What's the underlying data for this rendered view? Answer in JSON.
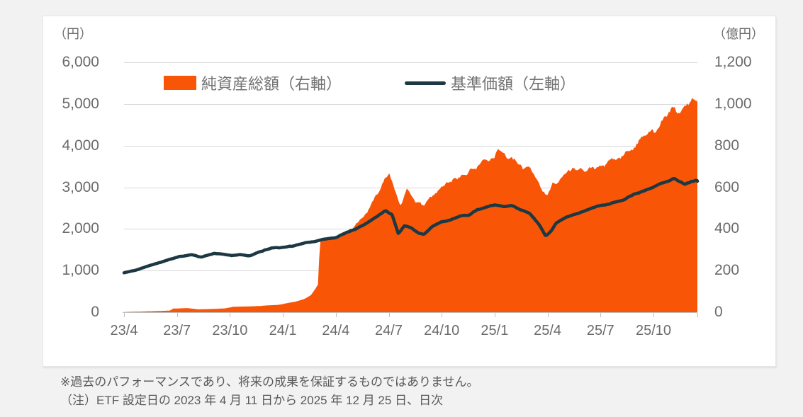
{
  "axes": {
    "left_unit": "（円）",
    "right_unit": "（億円）"
  },
  "legend": [
    {
      "label": "純資産総額（右軸）",
      "type": "area",
      "color": "#F85507"
    },
    {
      "label": "基準価額（左軸）",
      "type": "line",
      "color": "#1C3943"
    }
  ],
  "footnotes": [
    "※過去のパフォーマンスであり、将来の成果を保証するものではありません。",
    "（注）ETF 設定日の 2023 年 4 月 11 日から 2025 年 12 月 25 日、日次"
  ],
  "colors": {
    "area": "#F85507",
    "line": "#1C3943",
    "gridline": "#d9d9d9",
    "axis_line": "#bfbfbf",
    "tick_text": "#6b6b6b"
  },
  "chart_data": {
    "type": "area",
    "subtype": "area(right-axis) + line(left-axis) combo, daily time series",
    "title": "",
    "period": "2023/4/11 から 2025/12/25、日次",
    "x_ticks": [
      "23/4",
      "23/7",
      "23/10",
      "24/1",
      "24/4",
      "24/7",
      "24/10",
      "25/1",
      "25/4",
      "25/7",
      "25/10"
    ],
    "x_domain_months": [
      0,
      32.5
    ],
    "left_axis": {
      "unit": "円",
      "min": 0,
      "max": 6000,
      "tick_labels": [
        "6,000",
        "5,000",
        "4,000",
        "3,000",
        "2,000",
        "1,000",
        "0"
      ],
      "grid": true
    },
    "right_axis": {
      "unit": "億円",
      "min": 0,
      "max": 1200,
      "tick_labels": [
        "1,200",
        "1,000",
        "800",
        "600",
        "400",
        "200",
        "0"
      ],
      "grid": false
    },
    "legend_position": "top-inside",
    "series": [
      {
        "name": "純資産総額（右軸）",
        "type": "area",
        "axis": "right",
        "color": "#F85507",
        "points_note": "[months since 2023/4/11, 億円] anchor points read from chart",
        "points": [
          [
            0,
            1
          ],
          [
            1,
            3
          ],
          [
            2,
            6
          ],
          [
            2.6,
            8
          ],
          [
            2.8,
            18
          ],
          [
            3.6,
            20
          ],
          [
            4.2,
            14
          ],
          [
            4.7,
            15
          ],
          [
            5.2,
            16
          ],
          [
            5.7,
            18
          ],
          [
            6.2,
            26
          ],
          [
            7.2,
            28
          ],
          [
            7.7,
            30
          ],
          [
            8.3,
            33
          ],
          [
            8.7,
            35
          ],
          [
            9.3,
            44
          ],
          [
            9.7,
            50
          ],
          [
            10.2,
            62
          ],
          [
            10.6,
            80
          ],
          [
            10.85,
            110
          ],
          [
            11.0,
            130
          ],
          [
            11.1,
            330
          ],
          [
            11.4,
            340
          ],
          [
            12,
            345
          ],
          [
            12.5,
            370
          ],
          [
            13,
            395
          ],
          [
            13.5,
            440
          ],
          [
            14,
            500
          ],
          [
            14.5,
            565
          ],
          [
            14.8,
            635
          ],
          [
            15.05,
            667
          ],
          [
            15.35,
            600
          ],
          [
            15.7,
            532
          ],
          [
            16.05,
            585
          ],
          [
            16.4,
            560
          ],
          [
            16.9,
            515
          ],
          [
            17.4,
            545
          ],
          [
            17.9,
            580
          ],
          [
            18.4,
            612
          ],
          [
            18.9,
            640
          ],
          [
            19.4,
            660
          ],
          [
            19.9,
            692
          ],
          [
            20.4,
            722
          ],
          [
            20.9,
            755
          ],
          [
            21.15,
            805
          ],
          [
            21.5,
            790
          ],
          [
            21.8,
            762
          ],
          [
            22.2,
            733
          ],
          [
            22.6,
            682
          ],
          [
            23,
            703
          ],
          [
            23.4,
            652
          ],
          [
            23.75,
            603
          ],
          [
            24.0,
            572
          ],
          [
            24.3,
            632
          ],
          [
            24.7,
            662
          ],
          [
            25.1,
            700
          ],
          [
            25.5,
            715
          ],
          [
            25.9,
            722
          ],
          [
            26.2,
            702
          ],
          [
            26.6,
            716
          ],
          [
            27.1,
            710
          ],
          [
            27.6,
            720
          ],
          [
            28.1,
            726
          ],
          [
            28.6,
            752
          ],
          [
            29.1,
            792
          ],
          [
            29.5,
            845
          ],
          [
            29.9,
            895
          ],
          [
            30.2,
            872
          ],
          [
            30.5,
            932
          ],
          [
            30.9,
            948
          ],
          [
            31.2,
            986
          ],
          [
            31.5,
            942
          ],
          [
            31.8,
            962
          ],
          [
            32.1,
            982
          ],
          [
            32.5,
            1007
          ]
        ]
      },
      {
        "name": "基準価額（左軸）",
        "type": "line",
        "axis": "left",
        "color": "#1C3943",
        "points_note": "[months since 2023/4/11, 円] anchor points read from chart",
        "points": [
          [
            0,
            945
          ],
          [
            0.7,
            1005
          ],
          [
            1.7,
            1150
          ],
          [
            2.4,
            1250
          ],
          [
            3.1,
            1340
          ],
          [
            3.8,
            1395
          ],
          [
            4.4,
            1330
          ],
          [
            5.1,
            1415
          ],
          [
            5.6,
            1400
          ],
          [
            6.1,
            1360
          ],
          [
            6.6,
            1385
          ],
          [
            7.1,
            1355
          ],
          [
            7.7,
            1450
          ],
          [
            8.4,
            1545
          ],
          [
            9.1,
            1560
          ],
          [
            9.7,
            1590
          ],
          [
            10.4,
            1665
          ],
          [
            11.2,
            1735
          ],
          [
            12.0,
            1805
          ],
          [
            12.6,
            1930
          ],
          [
            13.1,
            2000
          ],
          [
            13.6,
            2110
          ],
          [
            14.3,
            2280
          ],
          [
            14.85,
            2430
          ],
          [
            15.2,
            2340
          ],
          [
            15.55,
            1880
          ],
          [
            15.9,
            2075
          ],
          [
            16.3,
            2025
          ],
          [
            16.7,
            1900
          ],
          [
            17.0,
            1870
          ],
          [
            17.5,
            2050
          ],
          [
            18.0,
            2160
          ],
          [
            18.5,
            2190
          ],
          [
            19.0,
            2295
          ],
          [
            19.5,
            2330
          ],
          [
            20.0,
            2475
          ],
          [
            20.5,
            2545
          ],
          [
            21.0,
            2585
          ],
          [
            21.5,
            2540
          ],
          [
            22.0,
            2560
          ],
          [
            22.5,
            2450
          ],
          [
            23.0,
            2370
          ],
          [
            23.55,
            2100
          ],
          [
            23.9,
            1845
          ],
          [
            24.2,
            1950
          ],
          [
            24.5,
            2145
          ],
          [
            24.9,
            2230
          ],
          [
            25.4,
            2310
          ],
          [
            25.9,
            2395
          ],
          [
            26.4,
            2475
          ],
          [
            26.9,
            2525
          ],
          [
            27.4,
            2565
          ],
          [
            27.9,
            2640
          ],
          [
            28.4,
            2695
          ],
          [
            28.9,
            2805
          ],
          [
            29.4,
            2875
          ],
          [
            29.9,
            2950
          ],
          [
            30.4,
            3055
          ],
          [
            30.9,
            3120
          ],
          [
            31.2,
            3190
          ],
          [
            31.5,
            3115
          ],
          [
            31.8,
            3050
          ],
          [
            32.15,
            3120
          ],
          [
            32.5,
            3145
          ]
        ]
      }
    ]
  }
}
